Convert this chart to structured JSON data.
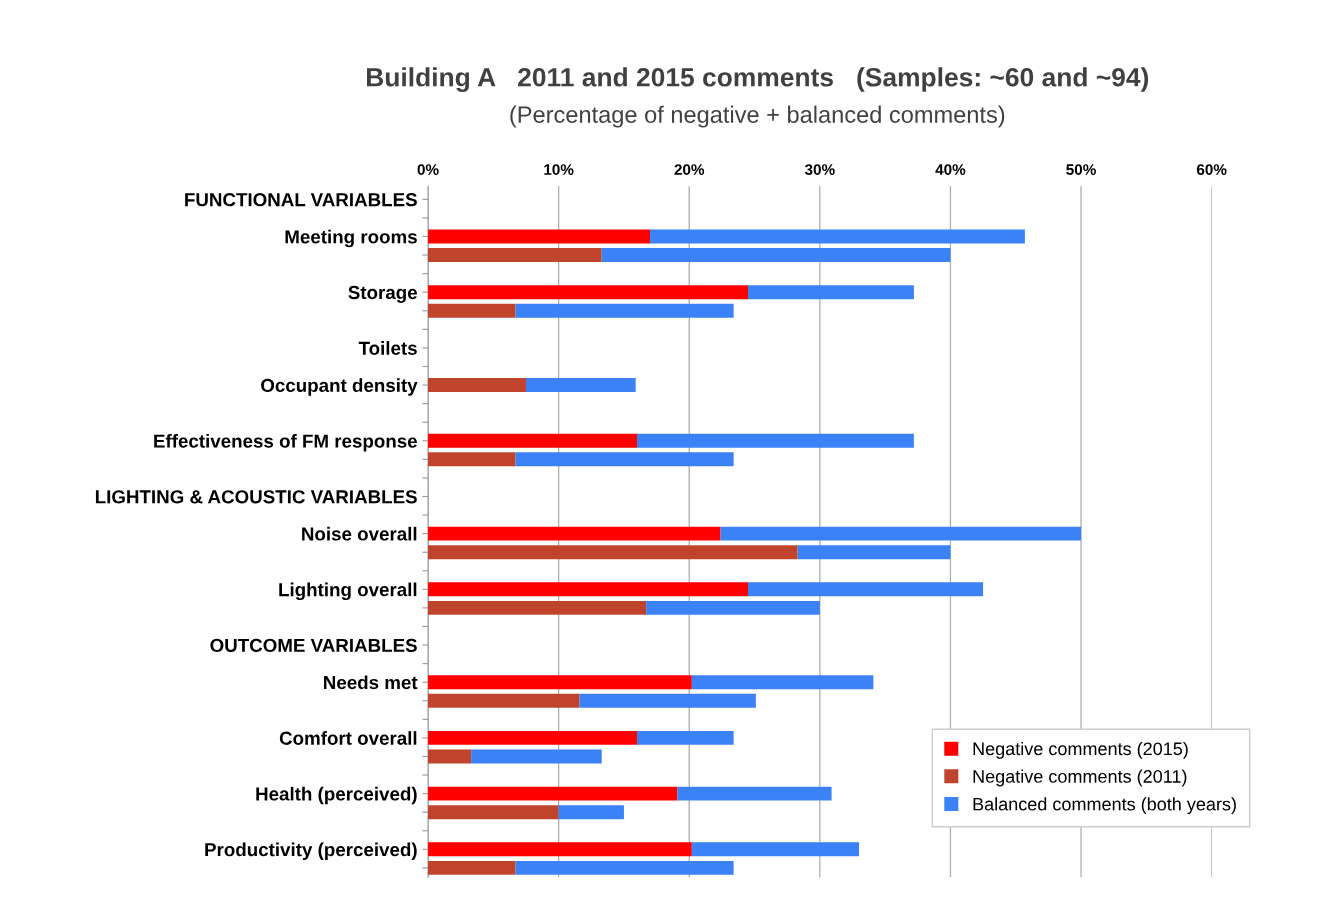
{
  "chart_data": {
    "type": "bar",
    "orientation": "horizontal",
    "stacked": true,
    "title": "Building A   2011 and 2015 comments   (Samples: ~60 and ~94)",
    "subtitle": "(Percentage of negative + balanced comments)",
    "categories": [
      "FUNCTIONAL VARIABLES",
      null,
      "Meeting rooms",
      null,
      null,
      "Storage",
      null,
      null,
      "Toilets",
      null,
      "Occupant density",
      null,
      null,
      "Effectiveness of FM response",
      null,
      null,
      "LIGHTING & ACOUSTIC VARIABLES",
      null,
      "Noise overall",
      null,
      null,
      "Lighting overall",
      null,
      null,
      "OUTCOME VARIABLES",
      null,
      "Needs met",
      null,
      null,
      "Comfort overall",
      null,
      null,
      "Health (perceived)",
      null,
      null,
      "Productivity (perceived)",
      null
    ],
    "series": [
      {
        "name": "Negative comments (2015)",
        "color": "#ff0000",
        "values": [
          null,
          null,
          17.0,
          null,
          null,
          24.5,
          null,
          null,
          null,
          null,
          null,
          null,
          null,
          16.0,
          null,
          null,
          null,
          null,
          22.4,
          null,
          null,
          24.5,
          null,
          null,
          null,
          null,
          20.2,
          null,
          null,
          16.0,
          null,
          null,
          19.1,
          null,
          null,
          20.2,
          null
        ]
      },
      {
        "name": "Negative comments (2011)",
        "color": "#c0442c",
        "values": [
          null,
          null,
          null,
          13.3,
          null,
          null,
          6.7,
          null,
          null,
          null,
          7.5,
          null,
          null,
          null,
          6.7,
          null,
          null,
          null,
          null,
          28.3,
          null,
          null,
          16.7,
          null,
          null,
          null,
          null,
          11.6,
          null,
          null,
          3.3,
          null,
          null,
          10.0,
          null,
          null,
          6.7
        ]
      },
      {
        "name": "Balanced comments (both years)",
        "color": "#3b82f6",
        "values": [
          null,
          null,
          28.7,
          26.7,
          null,
          12.7,
          16.7,
          null,
          null,
          null,
          8.4,
          null,
          null,
          21.2,
          16.7,
          null,
          null,
          null,
          27.6,
          11.7,
          null,
          18.0,
          13.3,
          null,
          null,
          null,
          13.9,
          13.5,
          null,
          7.4,
          10.0,
          null,
          11.8,
          5.0,
          null,
          12.8,
          16.7
        ]
      }
    ],
    "xlim": [
      0,
      60
    ],
    "xticks": [
      {
        "value": 0,
        "label": "0%"
      },
      {
        "value": 10,
        "label": "10%"
      },
      {
        "value": 20,
        "label": "20%"
      },
      {
        "value": 30,
        "label": "30%"
      },
      {
        "value": 40,
        "label": "40%"
      },
      {
        "value": 50,
        "label": "50%"
      },
      {
        "value": 60,
        "label": "60%"
      }
    ],
    "grid": "x",
    "legend": "bottom right"
  }
}
